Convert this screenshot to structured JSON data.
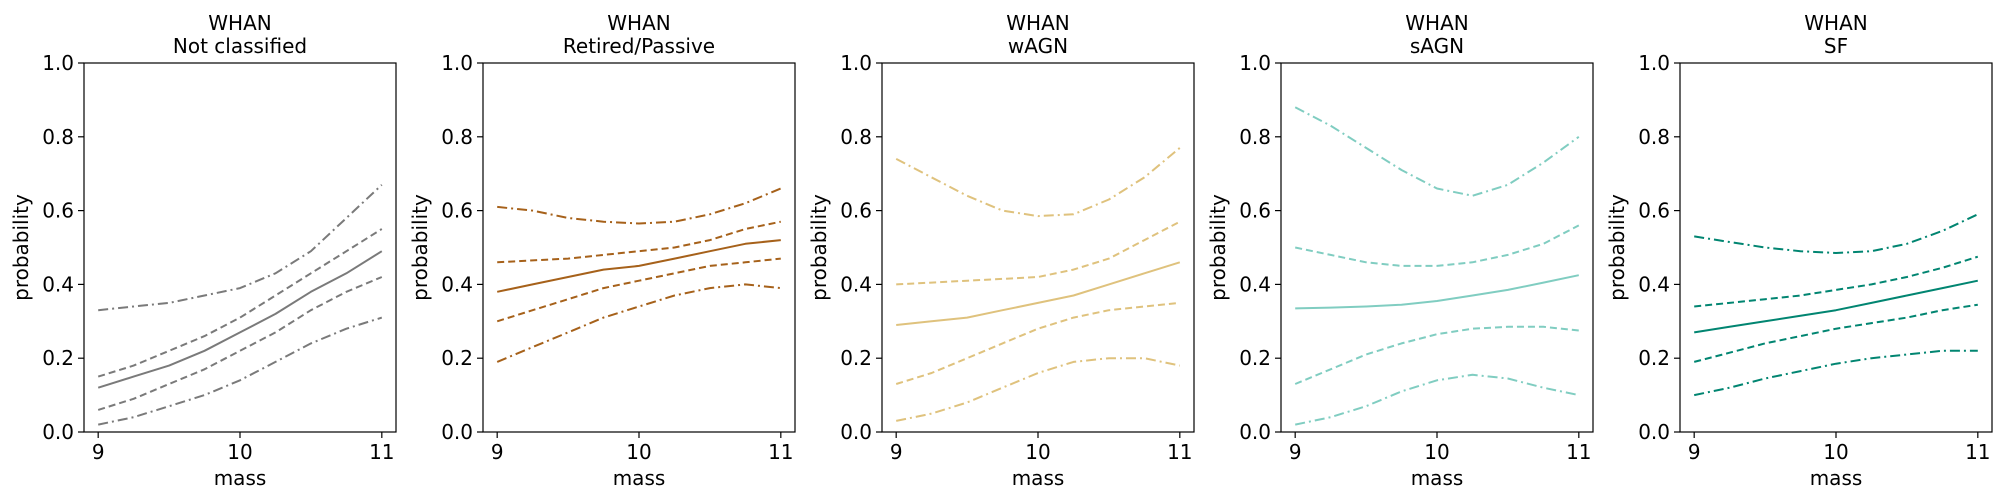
{
  "chart_data": [
    {
      "type": "line",
      "title": "WHAN\nNot classified",
      "xlabel": "mass",
      "ylabel": "probability",
      "xlim": [
        8.9,
        11.1
      ],
      "ylim": [
        0,
        1
      ],
      "xticks": [
        9,
        10,
        11
      ],
      "yticks": [
        0.0,
        0.2,
        0.4,
        0.6,
        0.8,
        1.0
      ],
      "color": "#7a7a7a",
      "x": [
        9,
        9.25,
        9.5,
        9.75,
        10,
        10.25,
        10.5,
        10.75,
        11
      ],
      "series": [
        {
          "style": "solid",
          "values": [
            0.12,
            0.15,
            0.18,
            0.22,
            0.27,
            0.32,
            0.38,
            0.43,
            0.49
          ]
        },
        {
          "style": "dashed",
          "values": [
            0.15,
            0.18,
            0.22,
            0.26,
            0.31,
            0.37,
            0.43,
            0.49,
            0.55
          ]
        },
        {
          "style": "dashed",
          "values": [
            0.06,
            0.09,
            0.13,
            0.17,
            0.22,
            0.27,
            0.33,
            0.38,
            0.42
          ]
        },
        {
          "style": "dashdot",
          "values": [
            0.33,
            0.34,
            0.35,
            0.37,
            0.39,
            0.43,
            0.49,
            0.58,
            0.67
          ]
        },
        {
          "style": "dashdot",
          "values": [
            0.02,
            0.04,
            0.07,
            0.1,
            0.14,
            0.19,
            0.24,
            0.28,
            0.31
          ]
        }
      ]
    },
    {
      "type": "line",
      "title": "WHAN\nRetired/Passive",
      "xlabel": "mass",
      "ylabel": "probability",
      "xlim": [
        8.9,
        11.1
      ],
      "ylim": [
        0,
        1
      ],
      "xticks": [
        9,
        10,
        11
      ],
      "yticks": [
        0.0,
        0.2,
        0.4,
        0.6,
        0.8,
        1.0
      ],
      "color": "#a6611a",
      "x": [
        9,
        9.25,
        9.5,
        9.75,
        10,
        10.25,
        10.5,
        10.75,
        11
      ],
      "series": [
        {
          "style": "solid",
          "values": [
            0.38,
            0.4,
            0.42,
            0.44,
            0.45,
            0.47,
            0.49,
            0.51,
            0.52
          ]
        },
        {
          "style": "dashed",
          "values": [
            0.46,
            0.465,
            0.47,
            0.48,
            0.49,
            0.5,
            0.52,
            0.55,
            0.57
          ]
        },
        {
          "style": "dashed",
          "values": [
            0.3,
            0.33,
            0.36,
            0.39,
            0.41,
            0.43,
            0.45,
            0.46,
            0.47
          ]
        },
        {
          "style": "dashdot",
          "values": [
            0.61,
            0.6,
            0.58,
            0.57,
            0.565,
            0.57,
            0.59,
            0.62,
            0.66
          ]
        },
        {
          "style": "dashdot",
          "values": [
            0.19,
            0.23,
            0.27,
            0.31,
            0.34,
            0.37,
            0.39,
            0.4,
            0.39
          ]
        }
      ]
    },
    {
      "type": "line",
      "title": "WHAN\nwAGN",
      "xlabel": "mass",
      "ylabel": "probability",
      "xlim": [
        8.9,
        11.1
      ],
      "ylim": [
        0,
        1
      ],
      "xticks": [
        9,
        10,
        11
      ],
      "yticks": [
        0.0,
        0.2,
        0.4,
        0.6,
        0.8,
        1.0
      ],
      "color": "#dfc27d",
      "x": [
        9,
        9.25,
        9.5,
        9.75,
        10,
        10.25,
        10.5,
        10.75,
        11
      ],
      "series": [
        {
          "style": "solid",
          "values": [
            0.29,
            0.3,
            0.31,
            0.33,
            0.35,
            0.37,
            0.4,
            0.43,
            0.46
          ]
        },
        {
          "style": "dashed",
          "values": [
            0.4,
            0.405,
            0.41,
            0.415,
            0.42,
            0.44,
            0.47,
            0.52,
            0.57
          ]
        },
        {
          "style": "dashed",
          "values": [
            0.13,
            0.16,
            0.2,
            0.24,
            0.28,
            0.31,
            0.33,
            0.34,
            0.35
          ]
        },
        {
          "style": "dashdot",
          "values": [
            0.74,
            0.69,
            0.64,
            0.6,
            0.585,
            0.59,
            0.63,
            0.69,
            0.77
          ]
        },
        {
          "style": "dashdot",
          "values": [
            0.03,
            0.05,
            0.08,
            0.12,
            0.16,
            0.19,
            0.2,
            0.2,
            0.18
          ]
        }
      ]
    },
    {
      "type": "line",
      "title": "WHAN\nsAGN",
      "xlabel": "mass",
      "ylabel": "probability",
      "xlim": [
        8.9,
        11.1
      ],
      "ylim": [
        0,
        1
      ],
      "xticks": [
        9,
        10,
        11
      ],
      "yticks": [
        0.0,
        0.2,
        0.4,
        0.6,
        0.8,
        1.0
      ],
      "color": "#80cdc1",
      "x": [
        9,
        9.25,
        9.5,
        9.75,
        10,
        10.25,
        10.5,
        10.75,
        11
      ],
      "series": [
        {
          "style": "solid",
          "values": [
            0.335,
            0.337,
            0.34,
            0.345,
            0.355,
            0.37,
            0.385,
            0.405,
            0.425
          ]
        },
        {
          "style": "dashed",
          "values": [
            0.5,
            0.48,
            0.46,
            0.45,
            0.45,
            0.46,
            0.48,
            0.51,
            0.56
          ]
        },
        {
          "style": "dashed",
          "values": [
            0.13,
            0.17,
            0.21,
            0.24,
            0.265,
            0.28,
            0.285,
            0.285,
            0.275
          ]
        },
        {
          "style": "dashdot",
          "values": [
            0.88,
            0.83,
            0.77,
            0.71,
            0.66,
            0.64,
            0.67,
            0.73,
            0.8
          ]
        },
        {
          "style": "dashdot",
          "values": [
            0.02,
            0.04,
            0.07,
            0.11,
            0.14,
            0.155,
            0.145,
            0.12,
            0.1
          ]
        }
      ]
    },
    {
      "type": "line",
      "title": "WHAN\nSF",
      "xlabel": "mass",
      "ylabel": "probability",
      "xlim": [
        8.9,
        11.1
      ],
      "ylim": [
        0,
        1
      ],
      "xticks": [
        9,
        10,
        11
      ],
      "yticks": [
        0.0,
        0.2,
        0.4,
        0.6,
        0.8,
        1.0
      ],
      "color": "#018571",
      "x": [
        9,
        9.25,
        9.5,
        9.75,
        10,
        10.25,
        10.5,
        10.75,
        11
      ],
      "series": [
        {
          "style": "solid",
          "values": [
            0.27,
            0.285,
            0.3,
            0.315,
            0.33,
            0.35,
            0.37,
            0.39,
            0.41
          ]
        },
        {
          "style": "dashed",
          "values": [
            0.34,
            0.35,
            0.36,
            0.37,
            0.385,
            0.4,
            0.42,
            0.445,
            0.475
          ]
        },
        {
          "style": "dashed",
          "values": [
            0.19,
            0.215,
            0.24,
            0.26,
            0.28,
            0.295,
            0.31,
            0.33,
            0.345
          ]
        },
        {
          "style": "dashdot",
          "values": [
            0.53,
            0.515,
            0.5,
            0.49,
            0.485,
            0.49,
            0.51,
            0.545,
            0.59
          ]
        },
        {
          "style": "dashdot",
          "values": [
            0.1,
            0.12,
            0.145,
            0.165,
            0.185,
            0.2,
            0.21,
            0.22,
            0.22
          ]
        }
      ]
    }
  ]
}
